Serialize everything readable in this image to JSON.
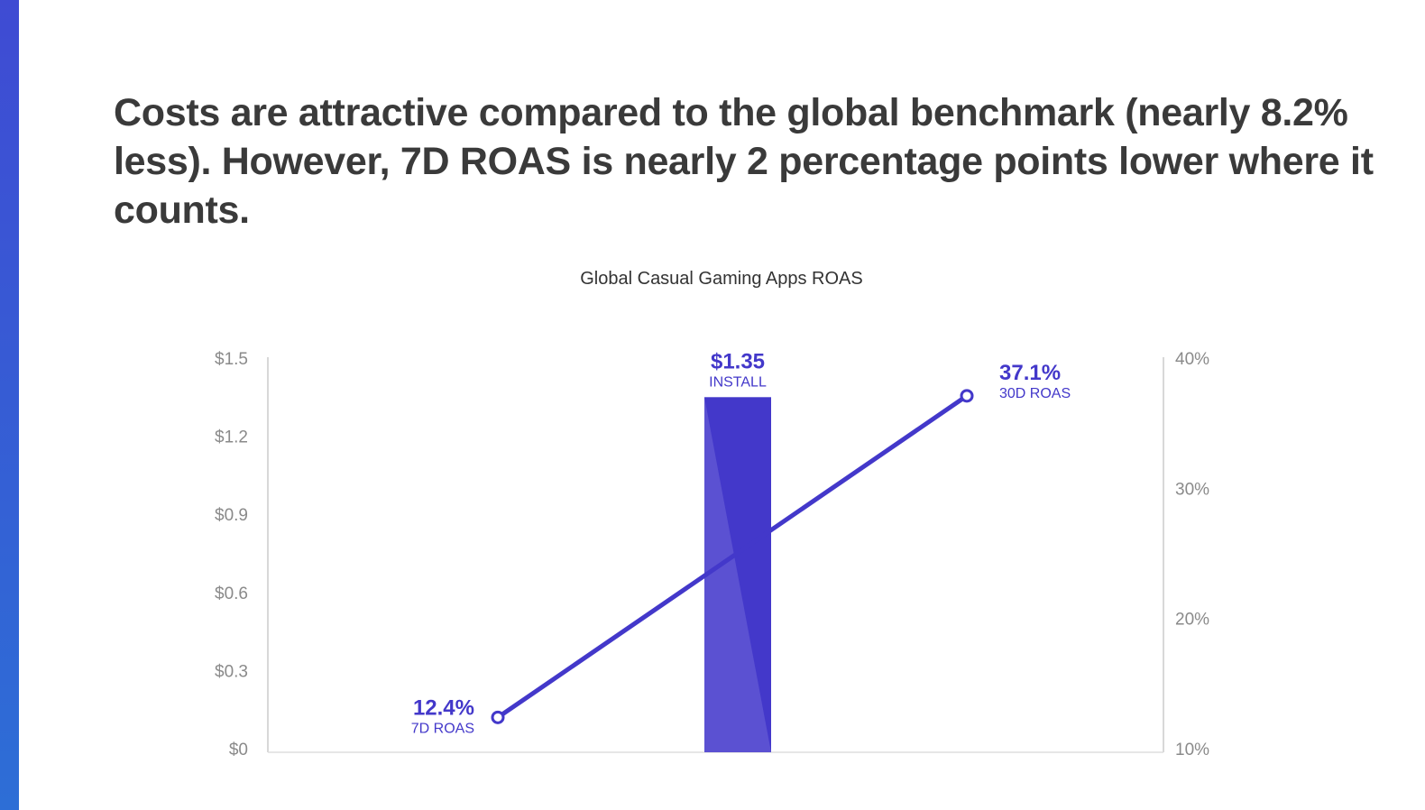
{
  "headline": "Costs are attractive compared to the global benchmark (nearly 8.2% less). However, 7D ROAS is nearly 2 percentage points lower where it counts.",
  "colors": {
    "accent": "#4338ca",
    "bar_dark": "#4338ca",
    "bar_light": "#5b51d2",
    "axis": "#cccccc",
    "tick": "#8a8a8a"
  },
  "chart_data": {
    "type": "bar",
    "title": "Global Casual Gaming Apps ROAS",
    "left_axis": {
      "ticks": [
        "$0",
        "$0.3",
        "$0.6",
        "$0.9",
        "$1.2",
        "$1.5"
      ],
      "range": [
        0,
        1.5
      ]
    },
    "right_axis": {
      "ticks": [
        "10%",
        "20%",
        "30%",
        "40%"
      ],
      "range": [
        10,
        40
      ]
    },
    "bar": {
      "label": "INSTALL",
      "value": 1.35,
      "value_label": "$1.35"
    },
    "line": {
      "name": "ROAS",
      "points": [
        {
          "label": "7D ROAS",
          "value": 12.4,
          "value_label": "12.4%"
        },
        {
          "label": "30D ROAS",
          "value": 37.1,
          "value_label": "37.1%"
        }
      ]
    }
  }
}
